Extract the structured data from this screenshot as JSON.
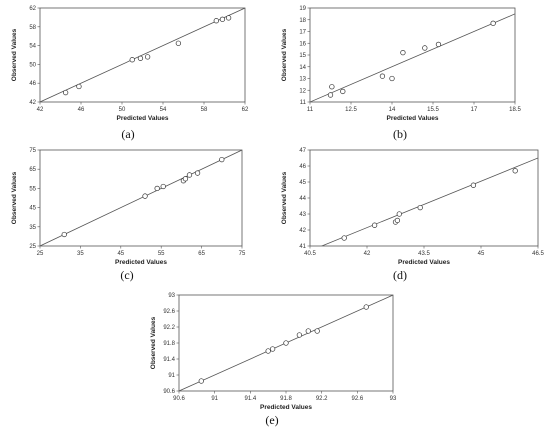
{
  "chart_data": [
    {
      "type": "scatter",
      "label": "(a)",
      "xlabel": "Predicted Values",
      "ylabel": "Observed Values",
      "xlim": [
        42,
        62
      ],
      "ylim": [
        42,
        62
      ],
      "xticks": [
        "42",
        "46",
        "50",
        "54",
        "58",
        "62"
      ],
      "yticks": [
        "42",
        "46",
        "50",
        "54",
        "58",
        "62"
      ],
      "fit_line": [
        [
          42,
          42
        ],
        [
          62,
          62
        ]
      ],
      "points": [
        [
          44.5,
          44.0
        ],
        [
          45.8,
          45.3
        ],
        [
          51.0,
          51.0
        ],
        [
          51.8,
          51.3
        ],
        [
          52.5,
          51.6
        ],
        [
          55.5,
          54.5
        ],
        [
          59.2,
          59.3
        ],
        [
          59.8,
          59.6
        ],
        [
          60.4,
          59.9
        ]
      ]
    },
    {
      "type": "scatter",
      "label": "(b)",
      "xlabel": "Predicted Values",
      "ylabel": "Observed Values",
      "xlim": [
        11,
        18.5
      ],
      "ylim": [
        11,
        19
      ],
      "xticks": [
        "11",
        "12.5",
        "14",
        "15.5",
        "17",
        "18.5"
      ],
      "yticks": [
        "11",
        "12",
        "13",
        "14",
        "15",
        "16",
        "17",
        "18",
        "19"
      ],
      "fit_line": [
        [
          11,
          11
        ],
        [
          18.5,
          18.5
        ]
      ],
      "points": [
        [
          11.75,
          11.6
        ],
        [
          11.8,
          12.3
        ],
        [
          12.2,
          11.9
        ],
        [
          13.65,
          13.2
        ],
        [
          14.0,
          13.0
        ],
        [
          14.4,
          15.2
        ],
        [
          15.2,
          15.6
        ],
        [
          15.7,
          15.9
        ],
        [
          17.7,
          17.7
        ]
      ]
    },
    {
      "type": "scatter",
      "label": "(c)",
      "xlabel": "Predicted Values",
      "ylabel": "Observed Values",
      "xlim": [
        25,
        75
      ],
      "ylim": [
        25,
        75
      ],
      "xticks": [
        "25",
        "35",
        "45",
        "55",
        "65",
        "75"
      ],
      "yticks": [
        "25",
        "35",
        "45",
        "55",
        "65",
        "75"
      ],
      "fit_line": [
        [
          25,
          25
        ],
        [
          75,
          75
        ]
      ],
      "points": [
        [
          31.0,
          31.0
        ],
        [
          51.0,
          51.0
        ],
        [
          54.0,
          55.0
        ],
        [
          55.5,
          56.0
        ],
        [
          60.5,
          59.0
        ],
        [
          61.0,
          60.0
        ],
        [
          62.0,
          62.0
        ],
        [
          64.0,
          63.0
        ],
        [
          70.0,
          70.0
        ]
      ]
    },
    {
      "type": "scatter",
      "label": "(d)",
      "xlabel": "Predicted Values",
      "ylabel": "Observed Values",
      "xlim": [
        40.5,
        46.5
      ],
      "ylim": [
        41,
        47
      ],
      "xticks": [
        "40.5",
        "42",
        "43.5",
        "45",
        "46.5"
      ],
      "yticks": [
        "41",
        "42",
        "43",
        "44",
        "45",
        "46",
        "47"
      ],
      "fit_line": [
        [
          40.5,
          40.7
        ],
        [
          46.5,
          46.5
        ]
      ],
      "points": [
        [
          41.4,
          41.5
        ],
        [
          42.2,
          42.3
        ],
        [
          42.75,
          42.5
        ],
        [
          42.8,
          42.6
        ],
        [
          42.85,
          43.0
        ],
        [
          43.4,
          43.4
        ],
        [
          44.8,
          44.8
        ],
        [
          45.9,
          45.7
        ]
      ]
    },
    {
      "type": "scatter",
      "label": "(e)",
      "xlabel": "Predicted Values",
      "ylabel": "Observed Values",
      "xlim": [
        90.6,
        93
      ],
      "ylim": [
        90.6,
        93
      ],
      "xticks": [
        "90.6",
        "91",
        "91.4",
        "91.8",
        "92.2",
        "92.6",
        "93"
      ],
      "yticks": [
        "90.6",
        "91",
        "91.4",
        "91.8",
        "92.2",
        "92.6",
        "93"
      ],
      "fit_line": [
        [
          90.6,
          90.6
        ],
        [
          93,
          93
        ]
      ],
      "points": [
        [
          90.85,
          90.85
        ],
        [
          91.6,
          91.6
        ],
        [
          91.65,
          91.65
        ],
        [
          91.8,
          91.8
        ],
        [
          91.95,
          92.0
        ],
        [
          92.05,
          92.1
        ],
        [
          92.15,
          92.1
        ],
        [
          92.7,
          92.7
        ]
      ]
    }
  ]
}
